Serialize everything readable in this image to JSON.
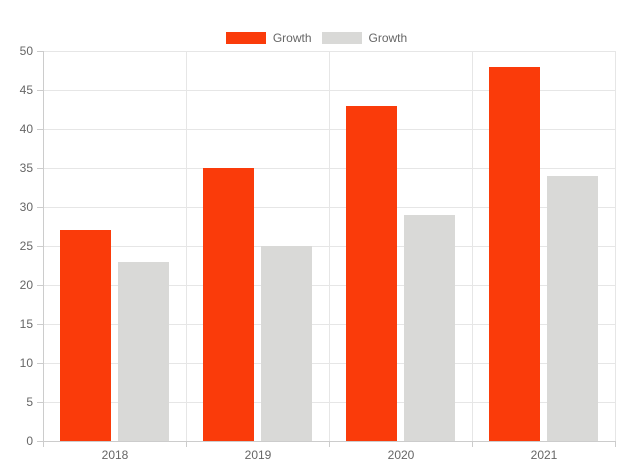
{
  "chart_data": {
    "type": "bar",
    "title": "",
    "xlabel": "",
    "ylabel": "",
    "categories": [
      "2018",
      "2019",
      "2020",
      "2021"
    ],
    "series": [
      {
        "name": "Growth",
        "color": "#fa3b0a",
        "values": [
          27,
          35,
          43,
          48
        ]
      },
      {
        "name": "Growth",
        "color": "#d9d9d7",
        "values": [
          23,
          25,
          29,
          34
        ]
      }
    ],
    "ylim": [
      0,
      50
    ],
    "yticks": [
      0,
      5,
      10,
      15,
      20,
      25,
      30,
      35,
      40,
      45,
      50
    ],
    "grid": true,
    "legend_position": "top-center"
  },
  "colors": {
    "background": "#ffffff",
    "gridline": "#e6e6e6",
    "axis_line": "#cccccc",
    "tick_text": "#666666",
    "legend_text": "#666666"
  }
}
